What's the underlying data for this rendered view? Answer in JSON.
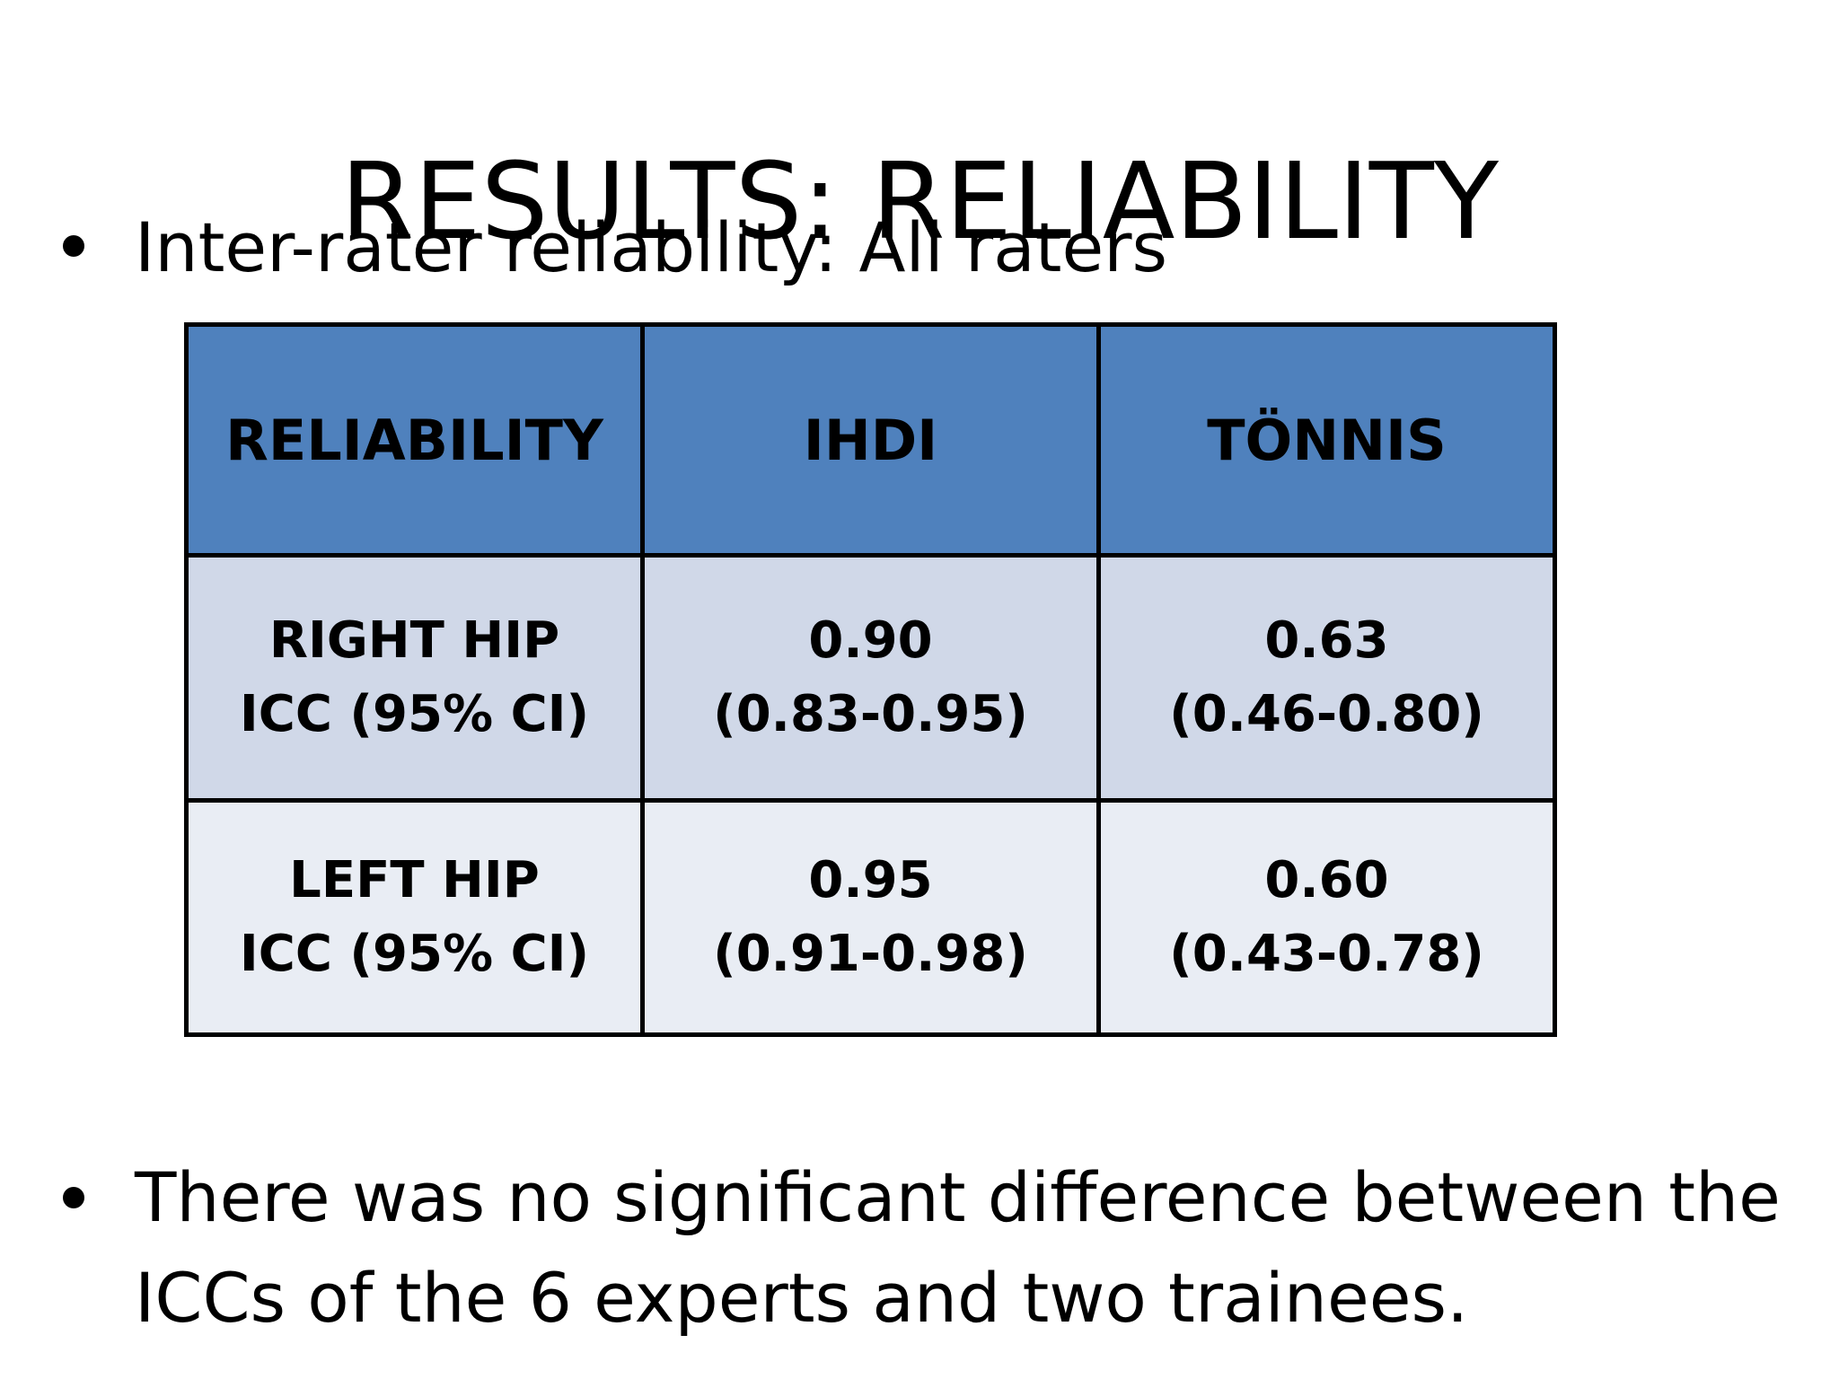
{
  "title": "RESULTS: RELIABILITY",
  "bullets": [
    "Inter-rater reliability: All raters",
    "There was no significant difference between the ICCs of the 6 experts and two trainees."
  ],
  "table": {
    "headers": [
      "RELIABILITY",
      "IHDI",
      "TÖNNIS"
    ],
    "rows": [
      {
        "label_line1": "RIGHT HIP",
        "label_line2": "ICC (95% CI)",
        "ihdi_value": "0.90",
        "ihdi_ci": "(0.83-0.95)",
        "tonnis_value": "0.63",
        "tonnis_ci": "(0.46-0.80)"
      },
      {
        "label_line1": "LEFT HIP",
        "label_line2": "ICC (95% CI)",
        "ihdi_value": "0.95",
        "ihdi_ci": "(0.91-0.98)",
        "tonnis_value": "0.60",
        "tonnis_ci": "(0.43-0.78)"
      }
    ]
  },
  "colors": {
    "header_fill": "#4f81bd",
    "row_odd_fill": "#d0d8e8",
    "row_even_fill": "#e9edf4",
    "border": "#000000"
  }
}
